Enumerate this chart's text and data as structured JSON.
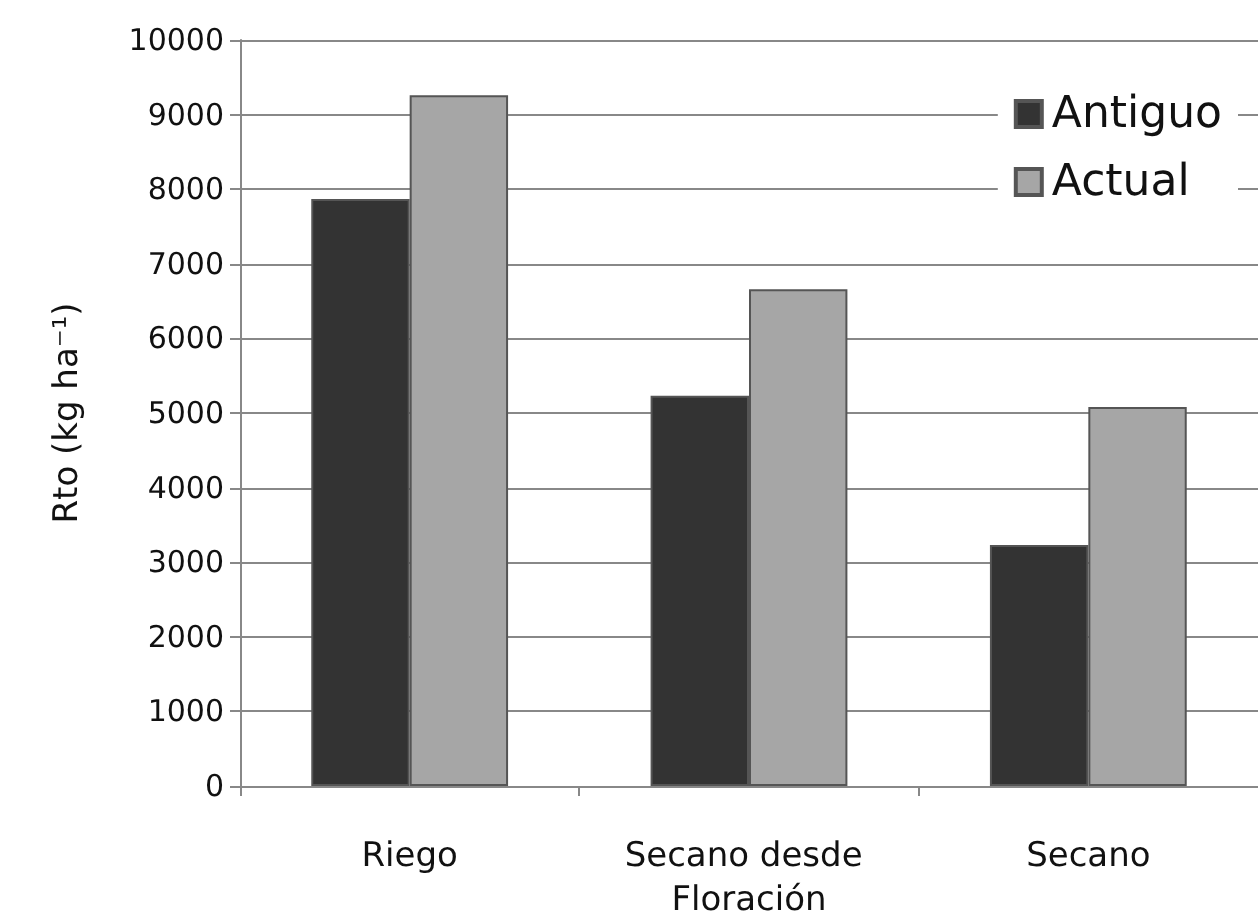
{
  "chart_data": {
    "type": "bar",
    "ylabel": "Rto (kg ha⁻¹)",
    "categories": [
      "Riego",
      "Secano desde Floración",
      "Secano"
    ],
    "series": [
      {
        "name": "Antiguo",
        "color": "#333333",
        "values": [
          7870,
          5230,
          3230
        ]
      },
      {
        "name": "Actual",
        "color": "#a6a6a6",
        "values": [
          9260,
          6660,
          5080
        ]
      }
    ],
    "ylim": [
      0,
      10000
    ],
    "yticks": [
      0,
      1000,
      2000,
      3000,
      4000,
      5000,
      6000,
      7000,
      8000,
      9000,
      10000
    ],
    "grid": "y",
    "legend": "top right"
  }
}
